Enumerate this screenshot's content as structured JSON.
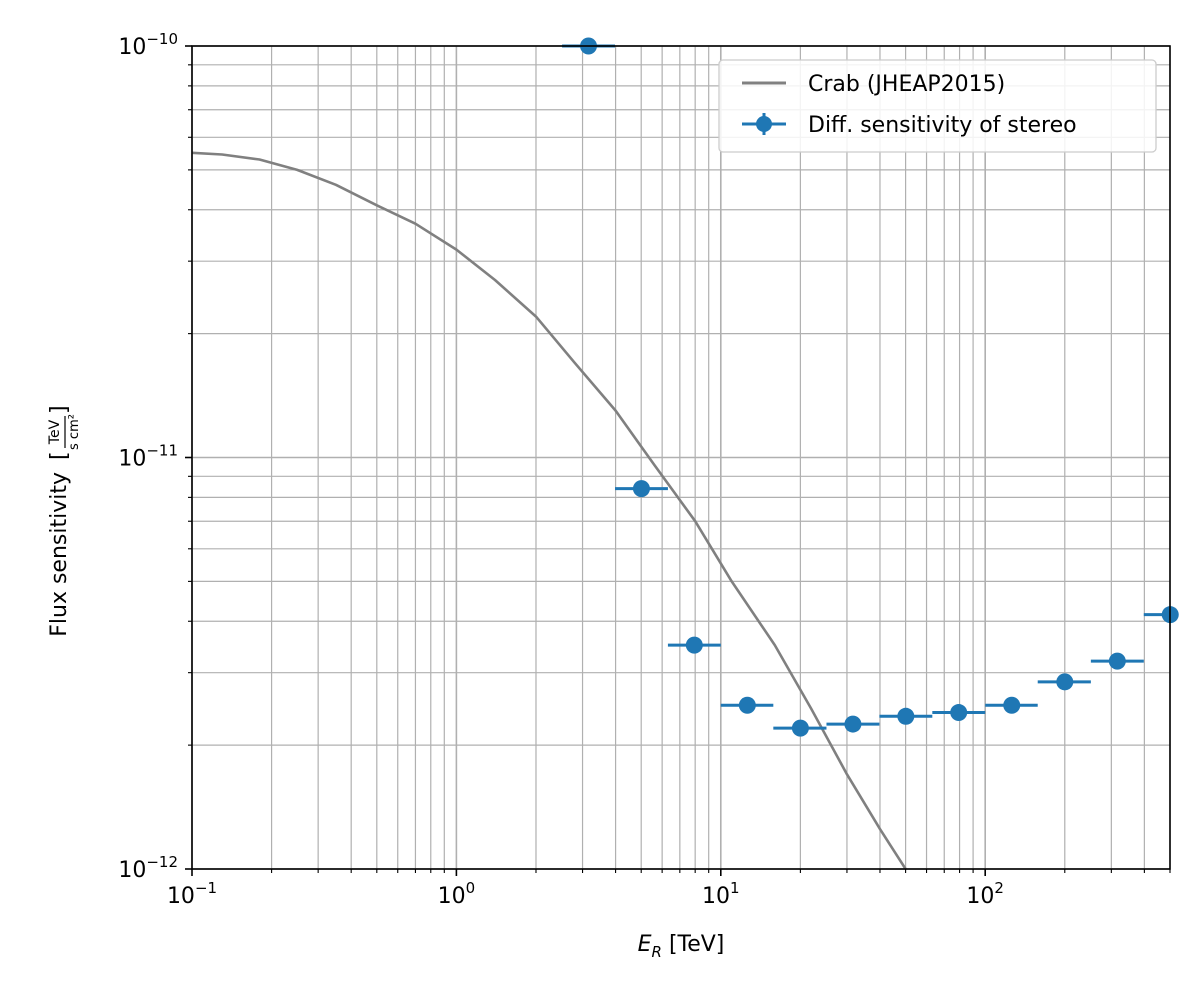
{
  "chart_data": {
    "type": "scatter",
    "title": "",
    "xlabel": "E_R [TeV]",
    "ylabel": "Flux sensitivity [TeV/(s cm²)]",
    "ylabel_main": "Flux sensitivity",
    "ylabel_unit_num": "TeV",
    "ylabel_unit_den": "s cm²",
    "xlabel_var": "E",
    "xlabel_sub": "R",
    "xlabel_unit": "[TeV]",
    "xscale": "log",
    "yscale": "log",
    "xlim": [
      0.1,
      500
    ],
    "ylim": [
      1e-12,
      1e-10
    ],
    "grid": "major-and-minor",
    "legend_position": "top-right",
    "x_ticks": [
      {
        "value": 0.1,
        "base": "10",
        "exp": "−1"
      },
      {
        "value": 1,
        "base": "10",
        "exp": "0"
      },
      {
        "value": 10,
        "base": "10",
        "exp": "1"
      },
      {
        "value": 100,
        "base": "10",
        "exp": "2"
      }
    ],
    "y_ticks": [
      {
        "value": 1e-12,
        "base": "10",
        "exp": "−12"
      },
      {
        "value": 1e-11,
        "base": "10",
        "exp": "−11"
      },
      {
        "value": 1e-10,
        "base": "10",
        "exp": "−10"
      }
    ],
    "series": [
      {
        "name": "Crab (JHEAP2015)",
        "kind": "line",
        "color": "#808080",
        "x": [
          0.1,
          0.13,
          0.18,
          0.25,
          0.35,
          0.5,
          0.7,
          1.0,
          1.4,
          2.0,
          2.8,
          4.0,
          5.6,
          8.0,
          11.0,
          16.0,
          22.0,
          30.0,
          40.0,
          50.0
        ],
        "y": [
          5.5e-11,
          5.45e-11,
          5.3e-11,
          5e-11,
          4.6e-11,
          4.1e-11,
          3.7e-11,
          3.2e-11,
          2.7e-11,
          2.2e-11,
          1.7e-11,
          1.3e-11,
          9.6e-12,
          7e-12,
          5e-12,
          3.5e-12,
          2.45e-12,
          1.7e-12,
          1.25e-12,
          1e-12
        ]
      },
      {
        "name": "Diff. sensitivity of stereo",
        "kind": "errorbar",
        "color": "#1f77b4",
        "points": [
          {
            "x": 3.16,
            "y": 1e-10,
            "xlo": 2.51,
            "xhi": 3.98
          },
          {
            "x": 5.01,
            "y": 8.4e-12,
            "xlo": 3.98,
            "xhi": 6.31
          },
          {
            "x": 7.94,
            "y": 3.5e-12,
            "xlo": 6.31,
            "xhi": 10.0
          },
          {
            "x": 12.6,
            "y": 2.5e-12,
            "xlo": 10.0,
            "xhi": 15.8
          },
          {
            "x": 20.0,
            "y": 2.2e-12,
            "xlo": 15.8,
            "xhi": 25.1
          },
          {
            "x": 31.6,
            "y": 2.25e-12,
            "xlo": 25.1,
            "xhi": 39.8
          },
          {
            "x": 50.1,
            "y": 2.35e-12,
            "xlo": 39.8,
            "xhi": 63.1
          },
          {
            "x": 79.4,
            "y": 2.4e-12,
            "xlo": 63.1,
            "xhi": 100.0
          },
          {
            "x": 126.0,
            "y": 2.5e-12,
            "xlo": 100.0,
            "xhi": 158.0
          },
          {
            "x": 200.0,
            "y": 2.85e-12,
            "xlo": 158.0,
            "xhi": 251.0
          },
          {
            "x": 316.0,
            "y": 3.2e-12,
            "xlo": 251.0,
            "xhi": 398.0
          },
          {
            "x": 501.0,
            "y": 4.15e-12,
            "xlo": 398.0,
            "xhi": 631.0
          }
        ]
      }
    ]
  }
}
